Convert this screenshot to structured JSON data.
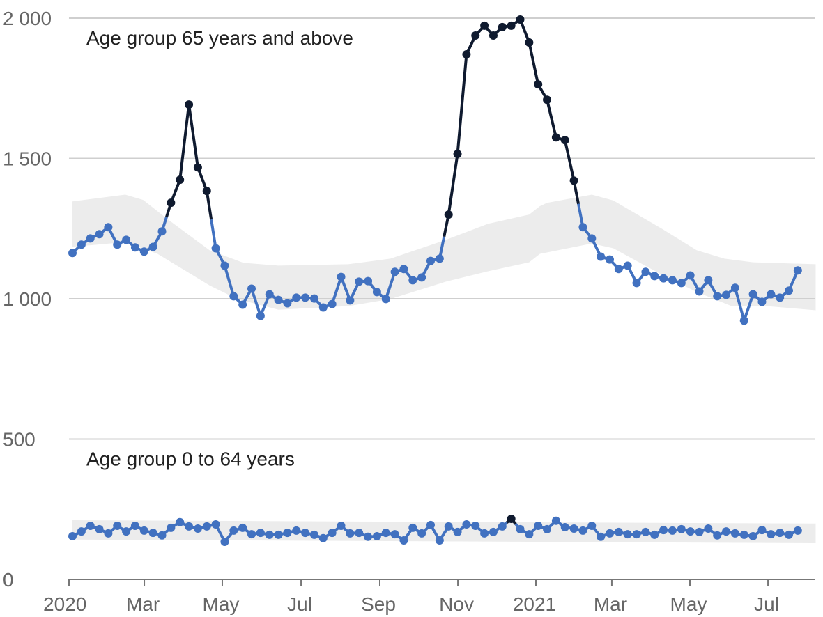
{
  "chart_data": {
    "type": "line",
    "x_unit": "weeks since start of 2020",
    "ylim": [
      0,
      2000
    ],
    "xlim": [
      -0.39,
      82.6
    ],
    "grid": true,
    "y_ticks": [
      {
        "value": 0,
        "label": "0"
      },
      {
        "value": 500,
        "label": "500"
      },
      {
        "value": 1000,
        "label": "1 000"
      },
      {
        "value": 1500,
        "label": "1 500"
      },
      {
        "value": 2000,
        "label": "2 000"
      }
    ],
    "x_ticks": [
      {
        "value": -0.39,
        "label": "2020"
      },
      {
        "value": 8.02,
        "label": "Mar"
      },
      {
        "value": 16.73,
        "label": "May"
      },
      {
        "value": 25.53,
        "label": "Jul"
      },
      {
        "value": 34.32,
        "label": "Sep"
      },
      {
        "value": 43.04,
        "label": "Nov"
      },
      {
        "value": 51.75,
        "label": "2021"
      },
      {
        "value": 60.23,
        "label": "Mar"
      },
      {
        "value": 68.95,
        "label": "May"
      },
      {
        "value": 77.67,
        "label": "Jul"
      }
    ],
    "colors": {
      "normal": "#4171c0",
      "excess": "#0f1a2f",
      "band": "#ececec",
      "grid": "#cfcfcf",
      "axis": "#777777"
    },
    "series": [
      {
        "name": "Age group 65 years and above",
        "values": [
          1163,
          1193,
          1215,
          1230,
          1255,
          1193,
          1210,
          1183,
          1168,
          1185,
          1240,
          1342,
          1424,
          1692,
          1468,
          1384,
          1180,
          1118,
          1009,
          979,
          1036,
          939,
          1016,
          996,
          984,
          1004,
          1004,
          1001,
          969,
          981,
          1078,
          994,
          1061,
          1063,
          1024,
          999,
          1096,
          1106,
          1066,
          1076,
          1135,
          1143,
          1300,
          1516,
          1871,
          1938,
          1973,
          1938,
          1968,
          1973,
          1995,
          1913,
          1764,
          1709,
          1575,
          1565,
          1421,
          1255,
          1215,
          1150,
          1140,
          1106,
          1118,
          1056,
          1096,
          1081,
          1073,
          1066,
          1056,
          1083,
          1026,
          1066,
          1009,
          1014,
          1039,
          922,
          1016,
          989,
          1016,
          1004,
          1029,
          1101
        ],
        "excess_indices": [
          11,
          12,
          13,
          14,
          15,
          42,
          43,
          44,
          45,
          46,
          47,
          48,
          49,
          50,
          51,
          52,
          53,
          54,
          55,
          56
        ],
        "band_upper": [
          [
            0,
            1347
          ],
          [
            5.9,
            1371
          ],
          [
            7.9,
            1352
          ],
          [
            10.6,
            1284
          ],
          [
            15.3,
            1173
          ],
          [
            19.1,
            1128
          ],
          [
            23,
            1118
          ],
          [
            30.8,
            1123
          ],
          [
            35.5,
            1143
          ],
          [
            41.7,
            1210
          ],
          [
            46.4,
            1267
          ],
          [
            51,
            1300
          ],
          [
            52.2,
            1330
          ],
          [
            53,
            1342
          ],
          [
            58,
            1371
          ],
          [
            60.4,
            1350
          ],
          [
            65.8,
            1250
          ],
          [
            69.7,
            1173
          ],
          [
            72.8,
            1143
          ],
          [
            76,
            1130
          ],
          [
            83,
            1123
          ]
        ],
        "band_lower": [
          [
            0,
            1185
          ],
          [
            5.9,
            1202
          ],
          [
            9.5,
            1160
          ],
          [
            15.3,
            1048
          ],
          [
            18.4,
            999
          ],
          [
            23,
            961
          ],
          [
            30.8,
            974
          ],
          [
            35.5,
            999
          ],
          [
            41.7,
            1061
          ],
          [
            46.4,
            1098
          ],
          [
            51,
            1130
          ],
          [
            52.2,
            1160
          ],
          [
            58,
            1197
          ],
          [
            60.4,
            1180
          ],
          [
            65.8,
            1086
          ],
          [
            69.7,
            1024
          ],
          [
            73.6,
            974
          ],
          [
            77.5,
            974
          ],
          [
            83,
            959
          ]
        ],
        "annotation": "Age group 65 years and above",
        "annotation_value": 1930
      },
      {
        "name": "Age group 0 to 64 years",
        "values": [
          154,
          171,
          191,
          179,
          164,
          191,
          171,
          191,
          174,
          166,
          157,
          184,
          204,
          189,
          181,
          189,
          196,
          134,
          174,
          184,
          161,
          166,
          159,
          159,
          166,
          174,
          166,
          159,
          147,
          166,
          191,
          164,
          166,
          152,
          154,
          166,
          161,
          139,
          184,
          164,
          194,
          139,
          189,
          169,
          196,
          191,
          164,
          169,
          189,
          216,
          179,
          161,
          191,
          179,
          209,
          186,
          181,
          174,
          191,
          152,
          164,
          169,
          161,
          161,
          169,
          159,
          176,
          174,
          179,
          171,
          169,
          181,
          157,
          171,
          164,
          159,
          154,
          176,
          161,
          166,
          159,
          174
        ],
        "excess_indices": [
          49
        ],
        "band_upper": [
          [
            0,
            211
          ],
          [
            83,
            199
          ]
        ],
        "band_lower": [
          [
            0,
            142
          ],
          [
            83,
            129
          ]
        ],
        "annotation": "Age group 0 to 64 years",
        "annotation_value": 430
      }
    ]
  }
}
